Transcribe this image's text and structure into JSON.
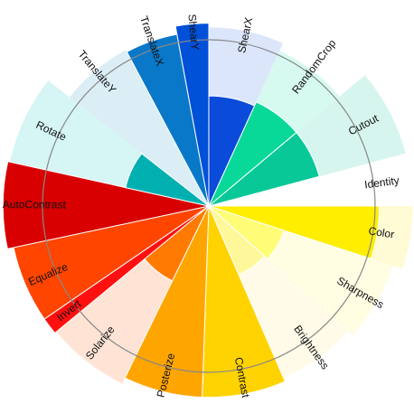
{
  "chart_data": {
    "type": "polar-bar",
    "title": "",
    "grid": true,
    "rlim": [
      0,
      1
    ],
    "reference_ring": 0.8,
    "segments": [
      {
        "label": "ShearX",
        "start_deg": 90.0,
        "end_deg": 65.5,
        "value": 0.53,
        "bg_value": 0.86,
        "color": "#0b4bd9",
        "bg_color": "#dce6fb"
      },
      {
        "label": "RandomCrop",
        "start_deg": 65.5,
        "end_deg": 40.0,
        "value": 0.55,
        "bg_value": 0.82,
        "color": "#08d898",
        "bg_color": "#d6faf0"
      },
      {
        "label": "Cutout",
        "start_deg": 40.0,
        "end_deg": 15.0,
        "value": 0.55,
        "bg_value": 0.98,
        "color": "#08c898",
        "bg_color": "#d6f5ee"
      },
      {
        "label": "Identity",
        "start_deg": 15.0,
        "end_deg": 0.0,
        "value": 0.0,
        "bg_value": 0.0,
        "color": "#ffffff",
        "bg_color": "#ffffff"
      },
      {
        "label": "Color",
        "start_deg": 0.0,
        "end_deg": -18.0,
        "value": 0.82,
        "bg_value": 0.98,
        "color": "#ffee00",
        "bg_color": "#fffbd5"
      },
      {
        "label": "Sharpness",
        "start_deg": -18.0,
        "end_deg": -42.0,
        "value": 0.38,
        "bg_value": 0.93,
        "color": "#fffc77",
        "bg_color": "#fffde2"
      },
      {
        "label": "Brightness",
        "start_deg": -42.0,
        "end_deg": -66.5,
        "value": 0.36,
        "bg_value": 0.9,
        "color": "#fff89a",
        "bg_color": "#fffbe8"
      },
      {
        "label": "Contrast",
        "start_deg": -66.5,
        "end_deg": -92.0,
        "value": 0.92,
        "bg_value": 0.92,
        "color": "#ffd300",
        "bg_color": "#fff6d6"
      },
      {
        "label": "Posterize",
        "start_deg": -92.0,
        "end_deg": -116.0,
        "value": 0.92,
        "bg_value": 0.92,
        "color": "#ffa500",
        "bg_color": "#fff1dc"
      },
      {
        "label": "Solarize",
        "start_deg": -116.0,
        "end_deg": -140.5,
        "value": 0.4,
        "bg_value": 0.95,
        "color": "#ff7a00",
        "bg_color": "#ffe4d6"
      },
      {
        "label": "Invert",
        "start_deg": -140.5,
        "end_deg": -145.5,
        "value": 0.96,
        "bg_value": 0.96,
        "color": "#ff0f0f",
        "bg_color": "#ffe0d6"
      },
      {
        "label": "Equalize",
        "start_deg": -145.5,
        "end_deg": -168.0,
        "value": 0.96,
        "bg_value": 0.96,
        "color": "#ff4500",
        "bg_color": "#ffe0d6"
      },
      {
        "label": "AutoContrast",
        "start_deg": -168.0,
        "end_deg": -192.5,
        "value": 0.99,
        "bg_value": 0.99,
        "color": "#d80000",
        "bg_color": "#ffd6d6"
      },
      {
        "label": "Rotate",
        "start_deg": -192.5,
        "end_deg": -218.0,
        "value": 0.41,
        "bg_value": 0.98,
        "color": "#00b0b0",
        "bg_color": "#d6f5f5"
      },
      {
        "label": "TranslateY",
        "start_deg": -218.0,
        "end_deg": -242.0,
        "value": 0.0,
        "bg_value": 0.85,
        "color": "#0090d0",
        "bg_color": "#dbeef6"
      },
      {
        "label": "TranslateX",
        "start_deg": -242.0,
        "end_deg": -259.5,
        "value": 0.84,
        "bg_value": 0.84,
        "color": "#0a78c8",
        "bg_color": "#d9eaf7"
      },
      {
        "label": "ShearY",
        "start_deg": -259.5,
        "end_deg": -270.0,
        "value": 0.88,
        "bg_value": 0.88,
        "color": "#0050d8",
        "bg_color": "#dce6fb"
      }
    ]
  }
}
